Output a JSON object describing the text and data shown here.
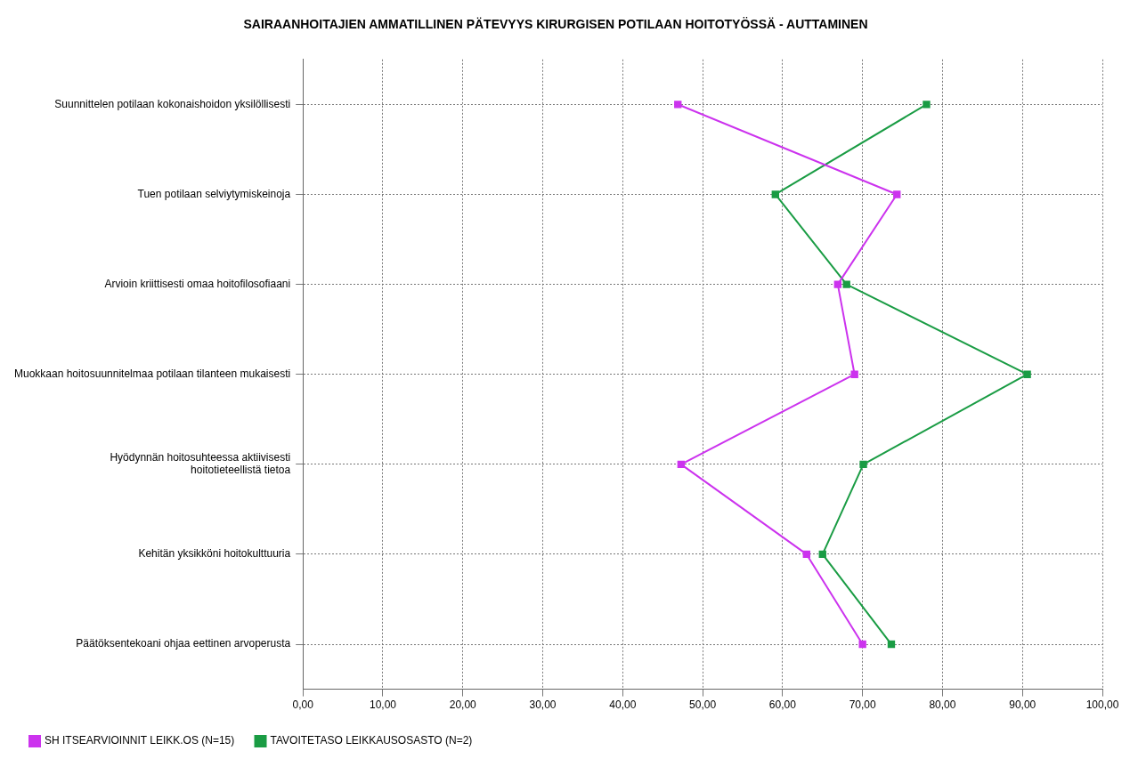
{
  "chart_data": {
    "type": "line",
    "orientation": "horizontal",
    "title": "SAIRAANHOITAJIEN AMMATILLINEN PÄTEVYYS KIRURGISEN POTILAAN HOITOTYÖSSÄ - AUTTAMINEN",
    "categories": [
      "Suunnittelen potilaan kokonaishoidon yksilöllisesti",
      "Tuen potilaan selviytymiskeinoja",
      "Arvioin kriittisesti omaa hoitofilosofiaani",
      "Muokkaan hoitosuunnitelmaa potilaan tilanteen mukaisesti",
      "Hyödynnän hoitosuhteessa aktiivisesti hoitotieteellistä tietoa",
      "Kehitän yksikköni hoitokulttuuria",
      "Päätöksentekoani ohjaa eettinen arvoperusta"
    ],
    "series": [
      {
        "name": "SH ITSEARVIOINNIT LEIKK.OS (N=15)",
        "color": "#cc33ee",
        "values": [
          46.9,
          74.3,
          66.9,
          69.0,
          47.3,
          63.0,
          70.0
        ]
      },
      {
        "name": "TAVOITETASO LEIKKAUSOSASTO (N=2)",
        "color": "#1a9c44",
        "values": [
          78.0,
          59.1,
          68.0,
          90.6,
          70.1,
          65.0,
          73.6
        ]
      }
    ],
    "xlim": [
      0,
      100
    ],
    "xticks": [
      {
        "value": 0,
        "label": "0,00"
      },
      {
        "value": 10,
        "label": "10,00"
      },
      {
        "value": 20,
        "label": "20,00"
      },
      {
        "value": 30,
        "label": "30,00"
      },
      {
        "value": 40,
        "label": "40,00"
      },
      {
        "value": 50,
        "label": "50,00"
      },
      {
        "value": 60,
        "label": "60,00"
      },
      {
        "value": 70,
        "label": "70,00"
      },
      {
        "value": 80,
        "label": "80,00"
      },
      {
        "value": 90,
        "label": "90,00"
      },
      {
        "value": 100,
        "label": "100,00"
      }
    ],
    "grid": true,
    "legend": "bottom",
    "marker": "square",
    "line_style": "solid"
  }
}
